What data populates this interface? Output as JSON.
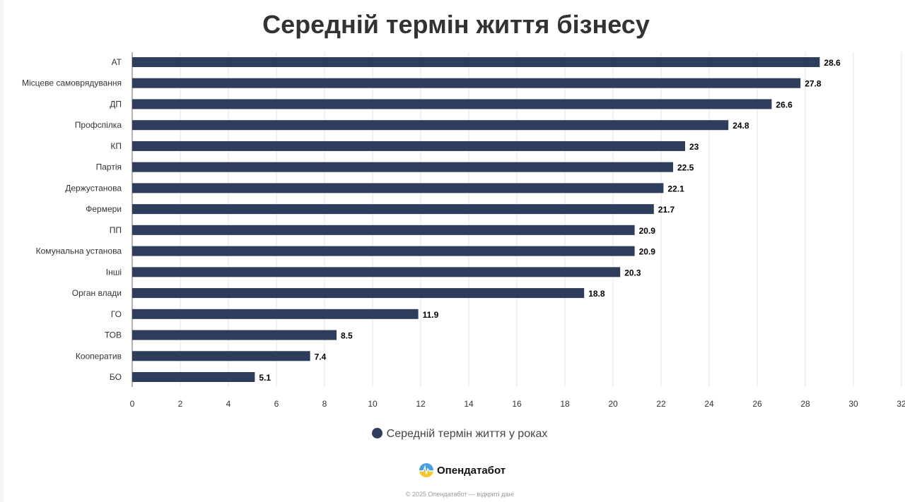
{
  "chart_data": {
    "type": "bar",
    "orientation": "horizontal",
    "title": "Середній термін життя бізнесу",
    "categories": [
      "АТ",
      "Місцеве самоврядування",
      "ДП",
      "Профспілка",
      "КП",
      "Партія",
      "Держустанова",
      "Фермери",
      "ПП",
      "Комунальна установа",
      "Інші",
      "Орган влади",
      "ГО",
      "ТОВ",
      "Кооператив",
      "БО"
    ],
    "series": [
      {
        "name": "Середній термін життя у роках",
        "values": [
          28.6,
          27.8,
          26.6,
          24.8,
          23,
          22.5,
          22.1,
          21.7,
          20.9,
          20.9,
          20.3,
          18.8,
          11.9,
          8.5,
          7.4,
          5.1
        ],
        "color": "#2e3d5c"
      }
    ],
    "xlim": [
      0,
      32
    ],
    "xticks": [
      0,
      2,
      4,
      6,
      8,
      10,
      12,
      14,
      16,
      18,
      20,
      22,
      24,
      26,
      28,
      30,
      32
    ],
    "grid": true,
    "legend": "bottom",
    "data_labels": true
  },
  "branding": {
    "logo_text": "Опендатабот",
    "footer": "© 2025 Опендатабот — відкриті дані"
  }
}
